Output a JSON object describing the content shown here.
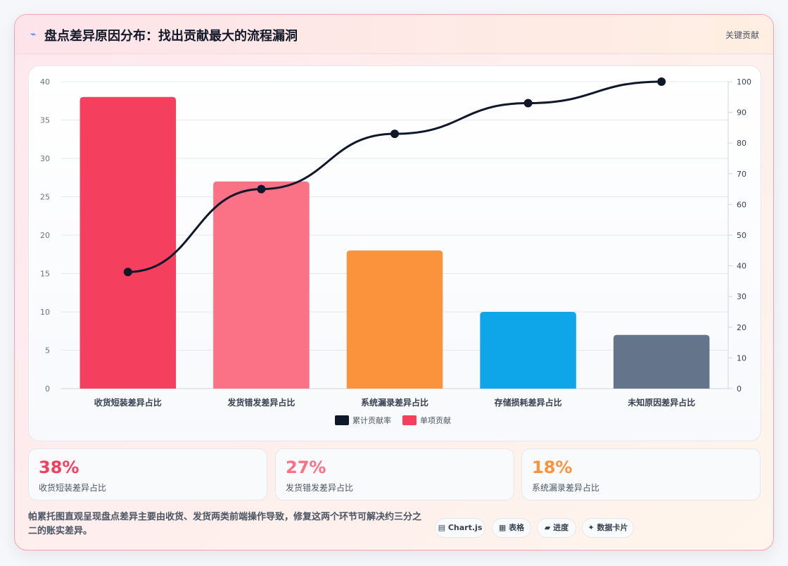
{
  "header": {
    "icon": "lightning-icon",
    "title": "盘点差异原因分布：找出贡献最大的流程漏洞",
    "link": "关键贡献"
  },
  "chart_data": {
    "type": "bar",
    "categories": [
      "收货短装差异占比",
      "发货错发差异占比",
      "系统漏录差异占比",
      "存储损耗差异占比",
      "未知原因差异占比"
    ],
    "series": [
      {
        "name": "单项贡献",
        "type": "bar",
        "axis": "left",
        "values": [
          38,
          27,
          18,
          10,
          7
        ],
        "colors": [
          "#f43f5e",
          "#fb7185",
          "#fb923c",
          "#0ea5e9",
          "#64748b"
        ]
      },
      {
        "name": "累计贡献率",
        "type": "line",
        "axis": "right",
        "values": [
          38,
          65,
          83,
          93,
          100
        ],
        "color": "#0f172a"
      }
    ],
    "y_left": {
      "ylim": [
        0,
        40
      ],
      "ticks": [
        "0",
        "5",
        "10",
        "15",
        "20",
        "25",
        "30",
        "35",
        "40"
      ]
    },
    "y_right": {
      "ylim": [
        0,
        100
      ],
      "ticks": [
        "0",
        "10",
        "20",
        "30",
        "40",
        "50",
        "60",
        "70",
        "80",
        "90",
        "100"
      ]
    },
    "legend_placement": "bottom-center",
    "grid": true
  },
  "stats": [
    {
      "value": "38%",
      "label": "收货短装差异占比",
      "color": "#f43f5e"
    },
    {
      "value": "27%",
      "label": "发货错发差异占比",
      "color": "#fb7185"
    },
    {
      "value": "18%",
      "label": "系统漏录差异占比",
      "color": "#fb923c"
    }
  ],
  "footer": {
    "text": "帕累托图直观呈现盘点差异主要由收货、发货两类前端操作导致，修复这两个环节可解决约三分之二的账实差异。"
  },
  "tags": [
    {
      "icon": "▤",
      "label": "Chart.js"
    },
    {
      "icon": "▦",
      "label": "表格"
    },
    {
      "icon": "▰",
      "label": "进度"
    },
    {
      "icon": "✦",
      "label": "数据卡片"
    }
  ]
}
